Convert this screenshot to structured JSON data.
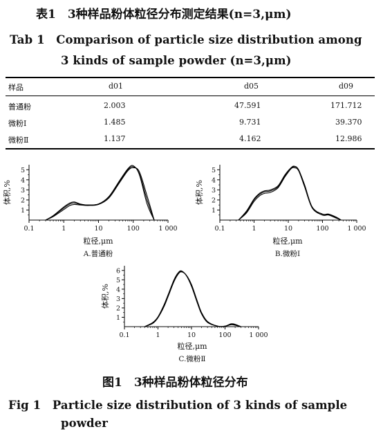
{
  "table": {
    "caption_cn": "表1　3种样品粉体粒径分布测定结果(n=3,μm)",
    "caption_en_line1": "Tab 1　Comparison of particle size distribution among",
    "caption_en_line2": "3 kinds of sample powder (n=3,μm)",
    "headers": [
      "样品",
      "d01",
      "d05",
      "d09"
    ],
    "rows": [
      [
        "普通粉",
        "2.003",
        "47.591",
        "171.712"
      ],
      [
        "微粉Ⅰ",
        "1.485",
        "9.731",
        "39.370"
      ],
      [
        "微粉Ⅱ",
        "1.137",
        "4.162",
        "12.986"
      ]
    ]
  },
  "figure": {
    "caption_cn": "图1　3种样品粉体粒径分布",
    "caption_en_line1": "Fig 1　Particle size distribution of 3 kinds of sample",
    "caption_en_line2": "powder"
  },
  "chart_data": [
    {
      "type": "line",
      "label": "A.普通粉",
      "xlabel": "粒径,μm",
      "ylabel": "体积,%",
      "x_scale": "log",
      "xlim": [
        0.1,
        1000
      ],
      "ylim": [
        0,
        5.5
      ],
      "x_ticks": [
        "0.1",
        "1",
        "10",
        "100",
        "1 000"
      ],
      "y_ticks": [
        "1",
        "2",
        "3",
        "4",
        "5"
      ],
      "series": [
        {
          "x": [
            0.3,
            0.5,
            1.0,
            1.5,
            2.0,
            3.0,
            5.0,
            10,
            20,
            40,
            70,
            100,
            150,
            250,
            400
          ],
          "y": [
            0,
            0.4,
            1.2,
            1.6,
            1.7,
            1.55,
            1.5,
            1.6,
            2.3,
            3.8,
            5.0,
            5.3,
            4.6,
            2.0,
            0
          ]
        },
        {
          "x": [
            0.3,
            0.5,
            1.0,
            1.5,
            2.0,
            3.0,
            5.0,
            10,
            20,
            40,
            70,
            100,
            150,
            250,
            400
          ],
          "y": [
            0,
            0.35,
            1.05,
            1.45,
            1.55,
            1.5,
            1.45,
            1.55,
            2.2,
            3.7,
            4.9,
            5.2,
            4.8,
            2.4,
            0
          ]
        },
        {
          "x": [
            0.3,
            0.5,
            1.0,
            1.5,
            2.0,
            3.0,
            5.0,
            10,
            20,
            40,
            70,
            100,
            150,
            250,
            400
          ],
          "y": [
            0,
            0.45,
            1.3,
            1.7,
            1.8,
            1.6,
            1.5,
            1.6,
            2.35,
            3.9,
            5.1,
            5.4,
            4.5,
            1.6,
            0
          ]
        }
      ]
    },
    {
      "type": "line",
      "label": "B.微粉Ⅰ",
      "xlabel": "粒径,μm",
      "ylabel": "体积,%",
      "x_scale": "log",
      "xlim": [
        0.1,
        1000
      ],
      "ylim": [
        0,
        5.5
      ],
      "x_ticks": [
        "0.1",
        "1",
        "10",
        "100",
        "1 000"
      ],
      "y_ticks": [
        "1",
        "2",
        "3",
        "4",
        "5"
      ],
      "series": [
        {
          "x": [
            0.35,
            0.6,
            1.0,
            1.5,
            2.0,
            3.0,
            5.0,
            8.0,
            12,
            15,
            20,
            30,
            50,
            100,
            150,
            250,
            350
          ],
          "y": [
            0,
            0.8,
            2.0,
            2.6,
            2.8,
            2.9,
            3.3,
            4.4,
            5.1,
            5.2,
            4.9,
            3.3,
            1.2,
            0.5,
            0.55,
            0.25,
            0
          ]
        },
        {
          "x": [
            0.35,
            0.6,
            1.0,
            1.5,
            2.0,
            3.0,
            5.0,
            8.0,
            12,
            15,
            20,
            30,
            50,
            100,
            150,
            250,
            350
          ],
          "y": [
            0,
            0.7,
            1.85,
            2.45,
            2.65,
            2.75,
            3.2,
            4.3,
            5.1,
            5.3,
            5.0,
            3.5,
            1.3,
            0.6,
            0.6,
            0.3,
            0
          ]
        },
        {
          "x": [
            0.35,
            0.6,
            1.0,
            1.5,
            2.0,
            3.0,
            5.0,
            8.0,
            12,
            15,
            20,
            30,
            50,
            100,
            150,
            250,
            350
          ],
          "y": [
            0,
            0.9,
            2.1,
            2.7,
            2.9,
            3.0,
            3.4,
            4.5,
            5.2,
            5.35,
            5.0,
            3.4,
            1.25,
            0.5,
            0.5,
            0.2,
            0
          ]
        }
      ]
    },
    {
      "type": "line",
      "label": "C.微粉Ⅱ",
      "xlabel": "粒径,μm",
      "ylabel": "体积,%",
      "x_scale": "log",
      "xlim": [
        0.1,
        1000
      ],
      "ylim": [
        0,
        6.5
      ],
      "x_ticks": [
        "0.1",
        "1",
        "10",
        "100",
        "1 000"
      ],
      "y_ticks": [
        "1",
        "2",
        "3",
        "4",
        "5",
        "6"
      ],
      "series": [
        {
          "x": [
            0.4,
            0.7,
            1.0,
            1.5,
            2.0,
            3.0,
            4.0,
            5.0,
            7.0,
            10,
            15,
            20,
            30,
            60,
            100,
            150,
            200,
            300
          ],
          "y": [
            0,
            0.4,
            1.0,
            2.2,
            3.3,
            4.9,
            5.7,
            5.9,
            5.5,
            4.4,
            2.6,
            1.4,
            0.5,
            0.05,
            0.05,
            0.25,
            0.2,
            0
          ]
        },
        {
          "x": [
            0.4,
            0.7,
            1.0,
            1.5,
            2.0,
            3.0,
            4.0,
            5.0,
            7.0,
            10,
            15,
            20,
            30,
            60,
            100,
            150,
            200,
            300
          ],
          "y": [
            0,
            0.35,
            0.95,
            2.1,
            3.2,
            4.8,
            5.6,
            5.85,
            5.5,
            4.5,
            2.7,
            1.5,
            0.55,
            0.05,
            0.05,
            0.3,
            0.25,
            0
          ]
        },
        {
          "x": [
            0.4,
            0.7,
            1.0,
            1.5,
            2.0,
            3.0,
            4.0,
            5.0,
            7.0,
            10,
            15,
            20,
            30,
            60,
            100,
            150,
            200,
            300
          ],
          "y": [
            0,
            0.45,
            1.05,
            2.3,
            3.4,
            5.0,
            5.75,
            5.95,
            5.45,
            4.3,
            2.5,
            1.35,
            0.45,
            0.05,
            0.05,
            0.2,
            0.15,
            0
          ]
        }
      ]
    }
  ]
}
